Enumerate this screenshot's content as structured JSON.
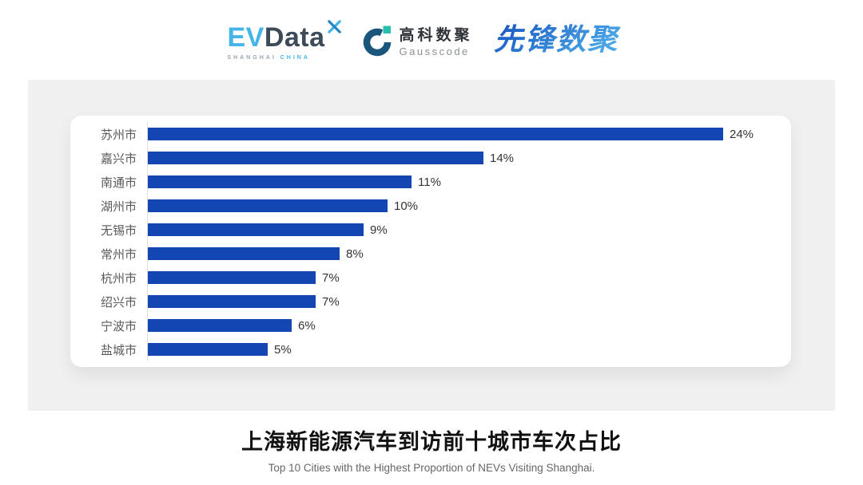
{
  "header": {
    "evdata_logo": {
      "ev": "EV",
      "data": "Data",
      "sub_left": "SHANGHAI",
      "sub_right": "CHINA",
      "ev_color": "#45b5e8",
      "data_color": "#3d4a58"
    },
    "gausscode_logo": {
      "cn": "高科数聚",
      "en": "Gausscode",
      "icon_arc_color": "#1a567c",
      "icon_square_color": "#29bfae"
    },
    "pioneer_logo": {
      "text": "先锋数聚",
      "gradient_start": "#1553c0",
      "gradient_end": "#4aa6e6"
    }
  },
  "chart_data": {
    "type": "bar",
    "orientation": "horizontal",
    "categories": [
      "苏州市",
      "嘉兴市",
      "南通市",
      "湖州市",
      "无锡市",
      "常州市",
      "杭州市",
      "绍兴市",
      "宁波市",
      "盐城市"
    ],
    "values": [
      24,
      14,
      11,
      10,
      9,
      8,
      7,
      7,
      6,
      5
    ],
    "value_labels": [
      "24%",
      "14%",
      "11%",
      "10%",
      "9%",
      "8%",
      "7%",
      "7%",
      "6%",
      "5%"
    ],
    "title": "上海新能源汽车到访前十城市车次占比",
    "subtitle": "Top 10 Cities with the Highest Proportion of  NEVs Visiting Shanghai.",
    "xlabel": "",
    "ylabel": "",
    "xlim": [
      0,
      26
    ],
    "grid": false,
    "legend": false,
    "bar_color": "#1446b3",
    "axis_line_color": "#e0e0e0"
  },
  "colors": {
    "panel_bg": "#f0f0f0",
    "card_bg": "#ffffff",
    "title_color": "#111111",
    "subtitle_color": "#666666",
    "category_label_color": "#595959",
    "value_label_color": "#333333"
  }
}
